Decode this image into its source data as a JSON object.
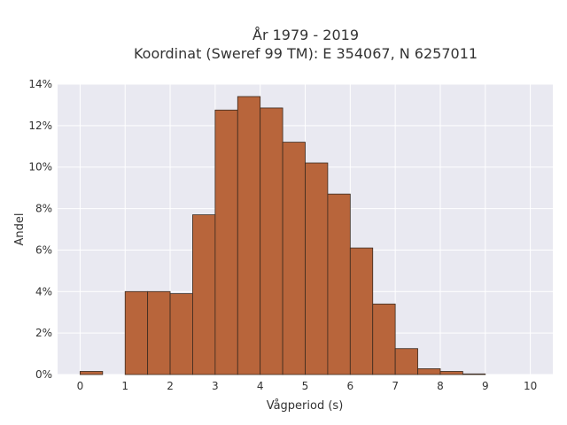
{
  "chart_data": {
    "type": "bar",
    "title_line1": "År 1979 - 2019",
    "title_line2": "Koordinat (Sweref 99 TM): E 354067, N 6257011",
    "xlabel": "Vågperiod (s)",
    "ylabel": "Andel",
    "xlim": [
      -0.5,
      10.5
    ],
    "ylim": [
      0,
      14
    ],
    "x_ticks": [
      0,
      1,
      2,
      3,
      4,
      5,
      6,
      7,
      8,
      9,
      10
    ],
    "y_ticks": [
      0,
      2,
      4,
      6,
      8,
      10,
      12,
      14
    ],
    "y_tick_labels": [
      "0%",
      "2%",
      "4%",
      "6%",
      "8%",
      "10%",
      "12%",
      "14%"
    ],
    "bin_width": 0.5,
    "bins": [
      {
        "x": 0.0,
        "value": 0.15
      },
      {
        "x": 0.5,
        "value": 0.0
      },
      {
        "x": 1.0,
        "value": 4.0
      },
      {
        "x": 1.5,
        "value": 4.0
      },
      {
        "x": 2.0,
        "value": 3.9
      },
      {
        "x": 2.5,
        "value": 7.7
      },
      {
        "x": 3.0,
        "value": 12.75
      },
      {
        "x": 3.5,
        "value": 13.4
      },
      {
        "x": 4.0,
        "value": 12.85
      },
      {
        "x": 4.5,
        "value": 11.2
      },
      {
        "x": 5.0,
        "value": 10.2
      },
      {
        "x": 5.5,
        "value": 8.7
      },
      {
        "x": 6.0,
        "value": 6.1
      },
      {
        "x": 6.5,
        "value": 3.4
      },
      {
        "x": 7.0,
        "value": 1.25
      },
      {
        "x": 7.5,
        "value": 0.28
      },
      {
        "x": 8.0,
        "value": 0.15
      },
      {
        "x": 8.5,
        "value": 0.03
      }
    ],
    "bar_color": "#b8653b",
    "bar_edge": "#3a2a1f",
    "plot_background": "#e9e9f1",
    "grid": true
  }
}
